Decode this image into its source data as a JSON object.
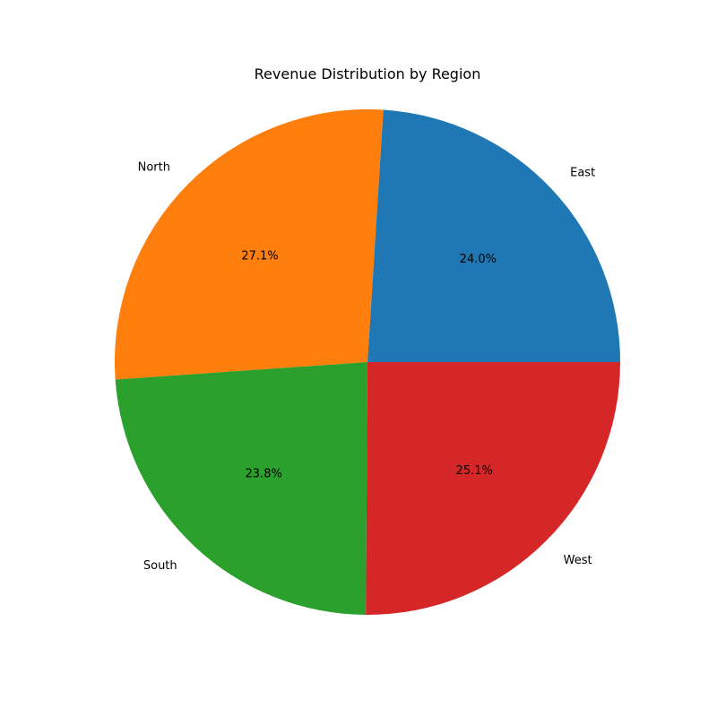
{
  "chart_data": {
    "type": "pie",
    "title": "Revenue Distribution by Region",
    "categories": [
      "East",
      "North",
      "South",
      "West"
    ],
    "values": [
      24.0,
      27.1,
      23.8,
      25.1
    ],
    "percent_labels": [
      "24.0%",
      "27.1%",
      "23.8%",
      "25.1%"
    ],
    "colors": [
      "#1f77b4",
      "#ff7f0e",
      "#2ca02c",
      "#d62728"
    ],
    "start_angle_deg": 0,
    "direction": "counterclockwise",
    "legend": "none"
  }
}
